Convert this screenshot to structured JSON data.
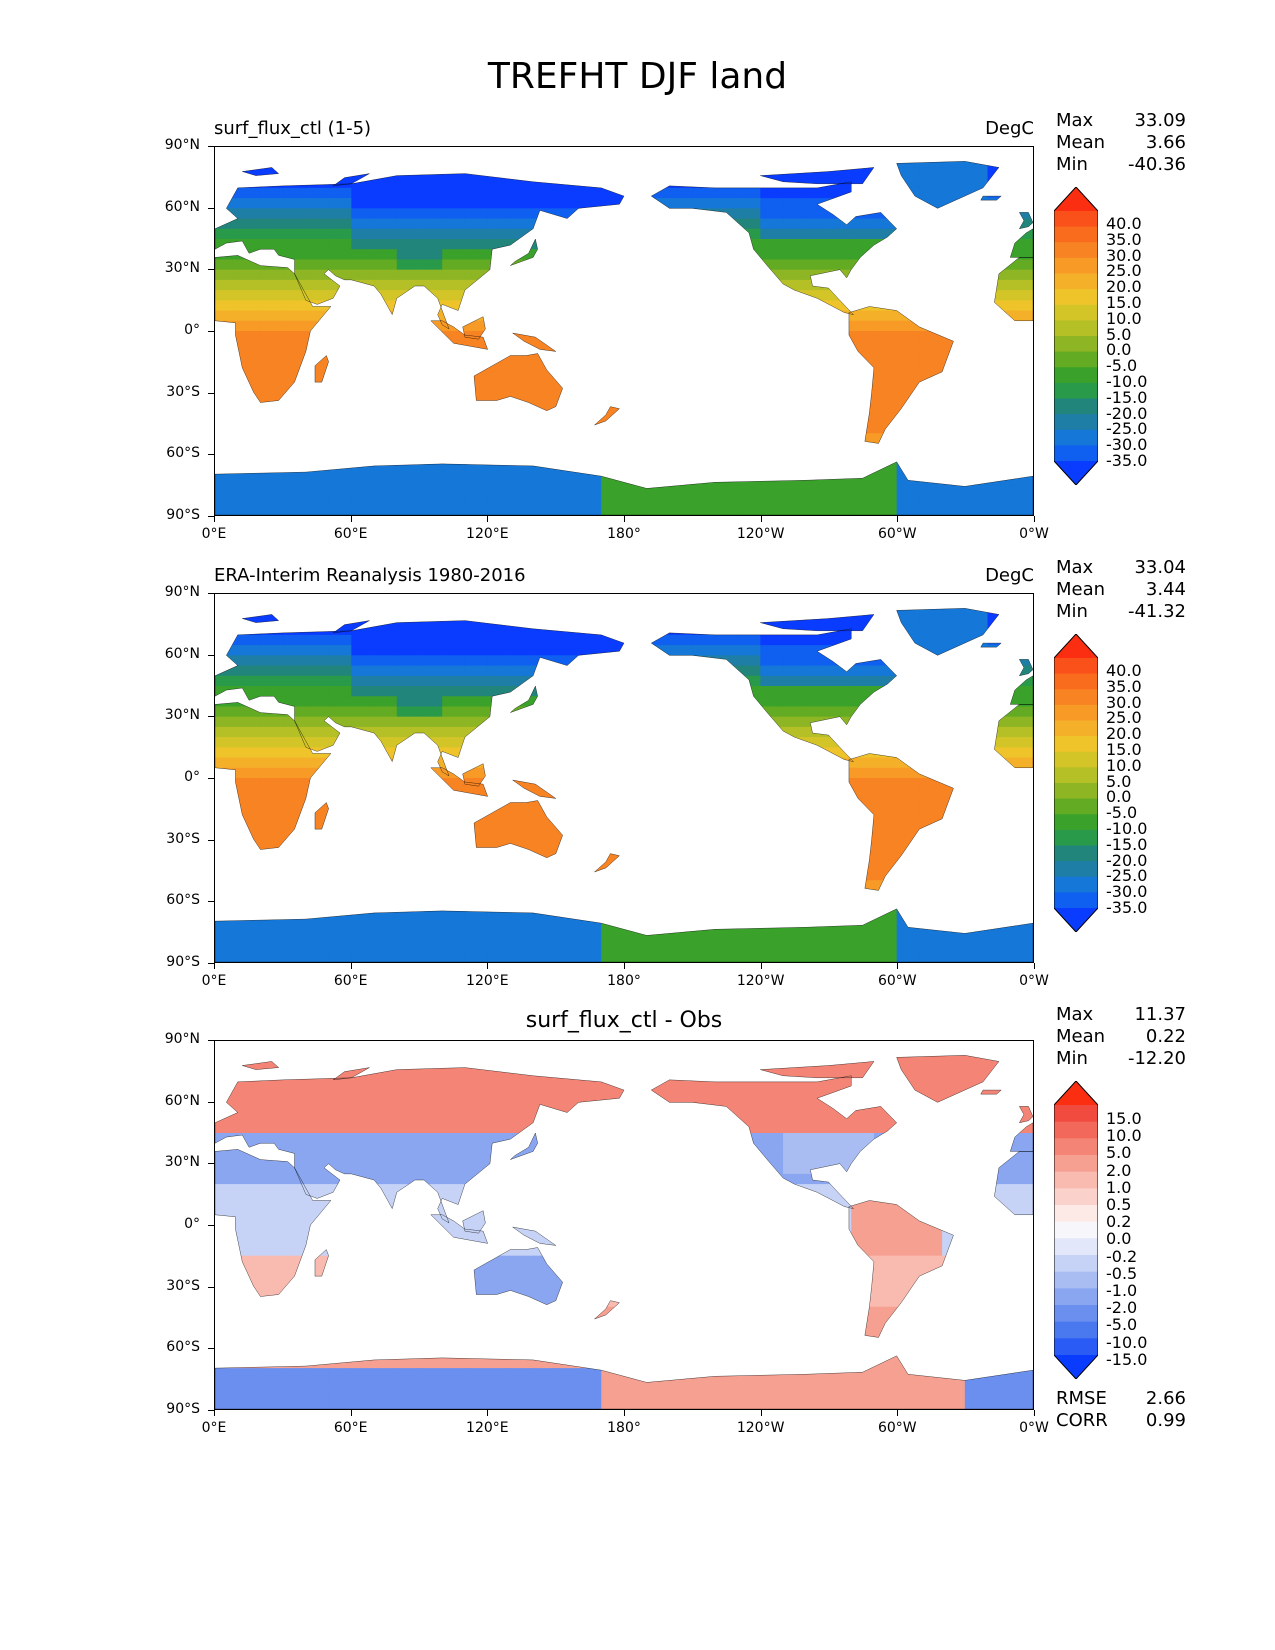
{
  "title": "TREFHT DJF land",
  "axes": {
    "y_ticks": [
      "90°N",
      "60°N",
      "30°N",
      "0°",
      "30°S",
      "60°S",
      "90°S"
    ],
    "x_ticks": [
      "0°E",
      "60°E",
      "120°E",
      "180°",
      "120°W",
      "60°W",
      "0°W"
    ]
  },
  "panels": [
    {
      "title": "surf_flux_ctl (1-5)",
      "units": "DegC",
      "stats": [
        {
          "label": "Max",
          "value": "33.09"
        },
        {
          "label": "Mean",
          "value": "3.66"
        },
        {
          "label": "Min",
          "value": "-40.36"
        }
      ],
      "colorbar": {
        "colors": [
          "#0a3cff",
          "#0f5ff0",
          "#1577d8",
          "#1e7ea6",
          "#22857c",
          "#289a4a",
          "#3aa12a",
          "#63ab22",
          "#8db524",
          "#b5bf26",
          "#d3c528",
          "#eec42a",
          "#f5b02a",
          "#f79a26",
          "#f88322",
          "#f96c1e",
          "#fa501a",
          "#fb2e12"
        ],
        "labels": [
          "40.0",
          "35.0",
          "30.0",
          "25.0",
          "20.0",
          "15.0",
          "10.0",
          "5.0",
          "0.0",
          "-5.0",
          "-10.0",
          "-15.0",
          "-20.0",
          "-25.0",
          "-30.0",
          "-35.0"
        ]
      }
    },
    {
      "title": "ERA-Interim Reanalysis 1980-2016",
      "units": "DegC",
      "stats": [
        {
          "label": "Max",
          "value": "33.04"
        },
        {
          "label": "Mean",
          "value": "3.44"
        },
        {
          "label": "Min",
          "value": "-41.32"
        }
      ],
      "colorbar": {
        "colors": [
          "#0a3cff",
          "#0f5ff0",
          "#1577d8",
          "#1e7ea6",
          "#22857c",
          "#289a4a",
          "#3aa12a",
          "#63ab22",
          "#8db524",
          "#b5bf26",
          "#d3c528",
          "#eec42a",
          "#f5b02a",
          "#f79a26",
          "#f88322",
          "#f96c1e",
          "#fa501a",
          "#fb2e12"
        ],
        "labels": [
          "40.0",
          "35.0",
          "30.0",
          "25.0",
          "20.0",
          "15.0",
          "10.0",
          "5.0",
          "0.0",
          "-5.0",
          "-10.0",
          "-15.0",
          "-20.0",
          "-25.0",
          "-30.0",
          "-35.0"
        ]
      }
    },
    {
      "title": "surf_flux_ctl - Obs",
      "units": "",
      "stats": [
        {
          "label": "Max",
          "value": "11.37"
        },
        {
          "label": "Mean",
          "value": "0.22"
        },
        {
          "label": "Min",
          "value": "-12.20"
        }
      ],
      "footer_stats": [
        {
          "label": "RMSE",
          "value": "2.66"
        },
        {
          "label": "CORR",
          "value": "0.99"
        }
      ],
      "colorbar": {
        "colors": [
          "#0a3cff",
          "#2a5cf5",
          "#4a78ee",
          "#6a8fee",
          "#8aa6f0",
          "#a9bdf3",
          "#c6d3f6",
          "#e2e8fa",
          "#f6f6fb",
          "#fde9e6",
          "#fbd2cb",
          "#f9baaf",
          "#f6a092",
          "#f48576",
          "#f2685a",
          "#f04b3e",
          "#fb2e12"
        ],
        "labels": [
          "15.0",
          "10.0",
          "5.0",
          "2.0",
          "1.0",
          "0.5",
          "0.2",
          "0.0",
          "-0.2",
          "-0.5",
          "-1.0",
          "-2.0",
          "-5.0",
          "-10.0",
          "-15.0"
        ]
      }
    }
  ]
}
